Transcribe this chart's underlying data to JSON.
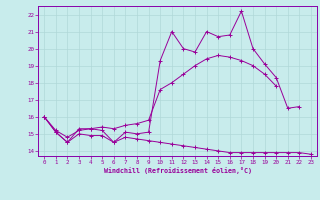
{
  "xlabel": "Windchill (Refroidissement éolien,°C)",
  "background_color": "#c8ecec",
  "grid_color": "#b0d8d8",
  "line_color": "#990099",
  "spine_color": "#8800aa",
  "xlim": [
    -0.5,
    23.5
  ],
  "ylim": [
    13.7,
    22.5
  ],
  "xticks": [
    0,
    1,
    2,
    3,
    4,
    5,
    6,
    7,
    8,
    9,
    10,
    11,
    12,
    13,
    14,
    15,
    16,
    17,
    18,
    19,
    20,
    21,
    22,
    23
  ],
  "yticks": [
    14,
    15,
    16,
    17,
    18,
    19,
    20,
    21,
    22
  ],
  "line1_y": [
    16.0,
    15.1,
    14.5,
    15.3,
    15.3,
    15.2,
    14.5,
    15.1,
    15.0,
    15.1,
    19.3,
    21.0,
    20.0,
    19.8,
    21.0,
    20.7,
    20.8,
    22.2,
    20.0,
    19.1,
    18.3,
    16.5,
    16.6,
    null
  ],
  "line2_y": [
    16.0,
    15.2,
    14.8,
    15.2,
    15.3,
    15.4,
    15.3,
    15.5,
    15.6,
    15.8,
    17.6,
    18.0,
    18.5,
    19.0,
    19.4,
    19.6,
    19.5,
    19.3,
    19.0,
    18.5,
    17.8,
    null,
    null,
    null
  ],
  "line3_y": [
    16.0,
    15.1,
    14.5,
    15.0,
    14.9,
    14.9,
    14.5,
    14.8,
    14.7,
    14.6,
    14.5,
    14.4,
    14.3,
    14.2,
    14.1,
    14.0,
    13.9,
    13.9,
    13.9,
    13.9,
    13.9,
    13.9,
    13.9,
    13.8
  ]
}
